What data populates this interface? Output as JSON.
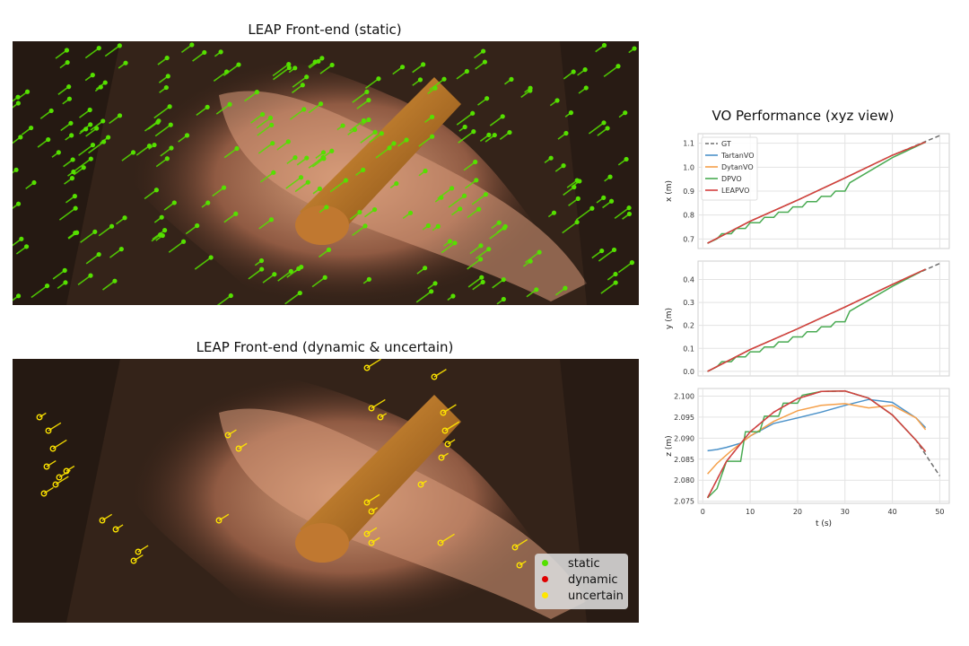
{
  "panels": {
    "static_title": "LEAP Front-end (static)",
    "dynamic_title": "LEAP Front-end (dynamic & uncertain)"
  },
  "legend": {
    "items": [
      {
        "label": "static",
        "color": "#55e000"
      },
      {
        "label": "dynamic",
        "color": "#e00000"
      },
      {
        "label": "uncertain",
        "color": "#ffe600"
      }
    ]
  },
  "chart_data": {
    "title": "VO Performance (xyz view)",
    "type": "line",
    "series_styles": [
      {
        "name": "GT",
        "color": "#6e6e6e",
        "dash": true
      },
      {
        "name": "TartanVO",
        "color": "#4c92c9",
        "dash": false
      },
      {
        "name": "DytanVO",
        "color": "#f5a04a",
        "dash": false
      },
      {
        "name": "DPVO",
        "color": "#4aab53",
        "dash": false
      },
      {
        "name": "LEAPVO",
        "color": "#d43f3f",
        "dash": false
      }
    ],
    "xlabel": "t (s)",
    "xlim": [
      -1,
      52
    ],
    "xticks": [
      0,
      10,
      20,
      30,
      40,
      50
    ],
    "grid": true,
    "legend_position": "top-left of first subplot",
    "subplots": [
      {
        "ylabel": "x (m)",
        "ylim": [
          0.66,
          1.14
        ],
        "yticks": [
          0.7,
          0.8,
          0.9,
          1.0,
          1.1
        ],
        "ytick_labels": [
          "0.7",
          "0.8",
          "0.9",
          "1.0",
          "1.1"
        ],
        "series": [
          {
            "name": "GT",
            "x": [
              1,
              10,
              20,
              30,
              40,
              50
            ],
            "y": [
              0.682,
              0.774,
              0.862,
              0.955,
              1.05,
              1.132
            ]
          },
          {
            "name": "TartanVO",
            "x": [
              1,
              10,
              20,
              30,
              40,
              47
            ],
            "y": [
              0.682,
              0.774,
              0.862,
              0.955,
              1.05,
              1.105
            ]
          },
          {
            "name": "DytanVO",
            "x": [
              1,
              10,
              20,
              30,
              40,
              47
            ],
            "y": [
              0.682,
              0.774,
              0.862,
              0.955,
              1.05,
              1.105
            ]
          },
          {
            "name": "DPVO",
            "x": [
              1,
              3,
              4,
              6,
              7,
              9,
              10,
              12,
              13,
              15,
              16,
              18,
              19,
              21,
              22,
              24,
              25,
              27,
              28,
              30,
              31,
              40,
              47
            ],
            "y": [
              0.682,
              0.7,
              0.722,
              0.722,
              0.744,
              0.744,
              0.768,
              0.768,
              0.79,
              0.79,
              0.812,
              0.812,
              0.834,
              0.834,
              0.856,
              0.856,
              0.878,
              0.878,
              0.9,
              0.9,
              0.935,
              1.04,
              1.105
            ]
          },
          {
            "name": "LEAPVO",
            "x": [
              1,
              10,
              20,
              30,
              40,
              47
            ],
            "y": [
              0.682,
              0.774,
              0.862,
              0.955,
              1.05,
              1.105
            ]
          }
        ]
      },
      {
        "ylabel": "y (m)",
        "ylim": [
          -0.02,
          0.48
        ],
        "yticks": [
          0.0,
          0.1,
          0.2,
          0.3,
          0.4
        ],
        "ytick_labels": [
          "0.0",
          "0.1",
          "0.2",
          "0.3",
          "0.4"
        ],
        "series": [
          {
            "name": "GT",
            "x": [
              1,
              10,
              20,
              30,
              40,
              50
            ],
            "y": [
              0.0,
              0.095,
              0.185,
              0.28,
              0.378,
              0.47
            ]
          },
          {
            "name": "TartanVO",
            "x": [
              1,
              10,
              20,
              30,
              40,
              47
            ],
            "y": [
              0.0,
              0.095,
              0.185,
              0.28,
              0.378,
              0.445
            ]
          },
          {
            "name": "DytanVO",
            "x": [
              1,
              10,
              20,
              30,
              40,
              47
            ],
            "y": [
              0.0,
              0.095,
              0.185,
              0.28,
              0.378,
              0.445
            ]
          },
          {
            "name": "DPVO",
            "x": [
              1,
              3,
              4,
              6,
              7,
              9,
              10,
              12,
              13,
              15,
              16,
              18,
              19,
              21,
              22,
              24,
              25,
              27,
              28,
              30,
              31,
              40,
              47
            ],
            "y": [
              0.0,
              0.02,
              0.042,
              0.042,
              0.063,
              0.063,
              0.085,
              0.085,
              0.106,
              0.106,
              0.128,
              0.128,
              0.15,
              0.15,
              0.172,
              0.172,
              0.194,
              0.194,
              0.216,
              0.216,
              0.262,
              0.37,
              0.445
            ]
          },
          {
            "name": "LEAPVO",
            "x": [
              1,
              10,
              20,
              30,
              40,
              47
            ],
            "y": [
              0.0,
              0.095,
              0.185,
              0.28,
              0.378,
              0.445
            ]
          }
        ]
      },
      {
        "ylabel": "z (m)",
        "ylim": [
          2.0745,
          2.1018
        ],
        "yticks": [
          2.075,
          2.08,
          2.085,
          2.09,
          2.095,
          2.1
        ],
        "ytick_labels": [
          "2.075",
          "2.080",
          "2.085",
          "2.090",
          "2.095",
          "2.100"
        ],
        "series": [
          {
            "name": "GT",
            "x": [
              1,
              5,
              10,
              15,
              20,
              25,
              30,
              35,
              40,
              45,
              50
            ],
            "y": [
              2.0758,
              2.0845,
              2.0915,
              2.0962,
              2.0994,
              2.1011,
              2.1012,
              2.0995,
              2.0955,
              2.0895,
              2.081
            ]
          },
          {
            "name": "TartanVO",
            "x": [
              1,
              3,
              5,
              8,
              10,
              15,
              20,
              25,
              30,
              35,
              40,
              45,
              47
            ],
            "y": [
              2.087,
              2.0873,
              2.0878,
              2.0888,
              2.0905,
              2.0935,
              2.0948,
              2.0962,
              2.0978,
              2.0992,
              2.0985,
              2.0948,
              2.0925
            ]
          },
          {
            "name": "DytanVO",
            "x": [
              1,
              3,
              6,
              10,
              15,
              20,
              25,
              30,
              35,
              40,
              45,
              47
            ],
            "y": [
              2.0815,
              2.084,
              2.087,
              2.0905,
              2.094,
              2.0965,
              2.0978,
              2.0982,
              2.0972,
              2.0978,
              2.0948,
              2.092
            ]
          },
          {
            "name": "DPVO",
            "x": [
              1,
              3,
              5,
              6,
              8,
              9,
              12,
              13,
              16,
              17,
              20,
              21,
              25,
              30,
              35,
              40,
              45,
              47
            ],
            "y": [
              2.0758,
              2.078,
              2.0845,
              2.0845,
              2.0845,
              2.0915,
              2.0915,
              2.0952,
              2.0952,
              2.0983,
              2.0983,
              2.1002,
              2.1011,
              2.1012,
              2.0995,
              2.0955,
              2.0895,
              2.0868
            ]
          },
          {
            "name": "LEAPVO",
            "x": [
              1,
              5,
              10,
              15,
              20,
              25,
              30,
              35,
              40,
              45,
              47
            ],
            "y": [
              2.0758,
              2.0845,
              2.0915,
              2.0962,
              2.0994,
              2.1011,
              2.1012,
              2.0995,
              2.0955,
              2.0895,
              2.0868
            ]
          }
        ]
      }
    ]
  }
}
